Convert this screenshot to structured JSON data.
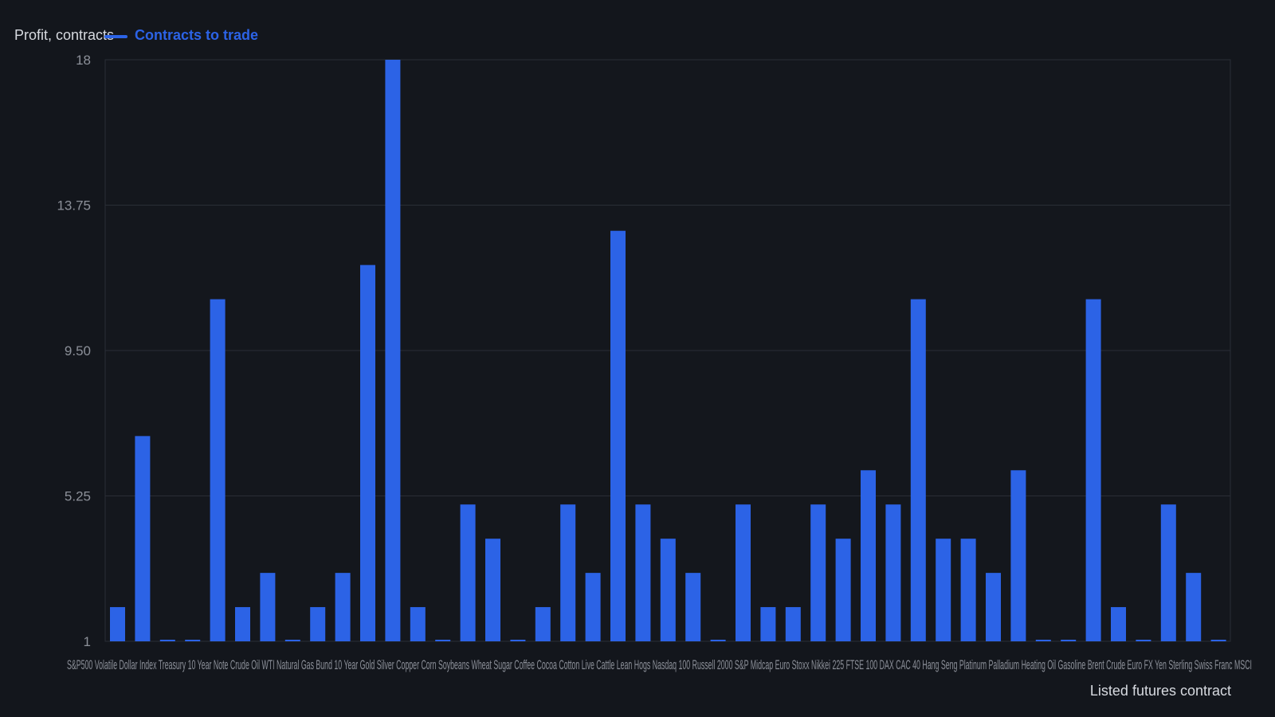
{
  "chart_data": {
    "type": "bar",
    "ylabel": "Profit, contracts",
    "xlabel": "Listed futures contract",
    "ylim": [
      1,
      18
    ],
    "yticks": [
      "1",
      "5.25",
      "9.50",
      "13.75",
      "18"
    ],
    "grid": true,
    "legend_position": "top-left",
    "series": [
      {
        "name": "Contracts to trade",
        "color": "#2c63e6",
        "values": [
          2,
          7,
          1,
          1,
          11,
          2,
          3,
          1,
          2,
          3,
          12,
          18,
          2,
          1,
          5,
          4,
          1,
          2,
          5,
          3,
          13,
          5,
          4,
          3,
          1,
          5,
          2,
          2,
          5,
          4,
          6,
          5,
          11,
          4,
          4,
          3,
          6,
          1,
          1,
          11,
          2,
          1,
          5,
          3,
          1
        ]
      }
    ],
    "categories": [
      "S&P500",
      "",
      "",
      "",
      "",
      "",
      "",
      "",
      "",
      "",
      "",
      "",
      "",
      "",
      "",
      "",
      "",
      "",
      "",
      "",
      "",
      "",
      "",
      "",
      "",
      "",
      "",
      "",
      "",
      "",
      "",
      "",
      "",
      "",
      "",
      "",
      "",
      "",
      "",
      "",
      "",
      "",
      "",
      "",
      "MSCI"
    ],
    "x_tick_text_overlapping": "S&P500 Volatile Dollar Index Treasury 10 Year Note Crude Oil WTI Natural Gas Bund 10 Year Gold Silver Copper Corn Soybeans Wheat Sugar Coffee Cocoa Cotton Live Cattle Lean Hogs Nasdaq 100 Russell 2000 S&P Midcap Euro Stoxx Nikkei 225 FTSE 100 DAX CAC 40 Hang Seng Platinum Palladium Heating Oil Gasoline Brent Crude Euro FX Yen Sterling Swiss Franc MSCI"
  },
  "colors": {
    "background": "#13161c",
    "bar": "#2c63e6",
    "grid": "#2a2e36",
    "text": "#c9ccd2"
  }
}
